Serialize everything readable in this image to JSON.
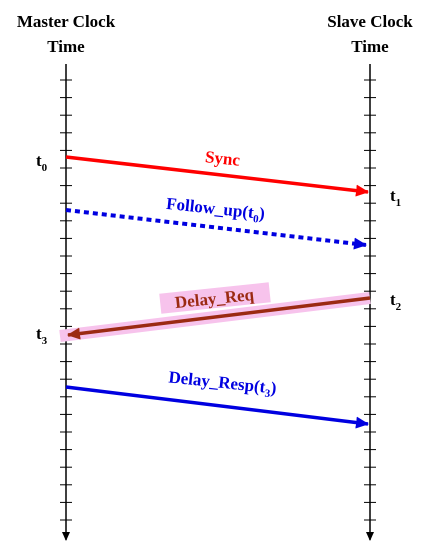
{
  "master": {
    "label": [
      "Master Clock",
      "Time"
    ]
  },
  "slave": {
    "label": [
      "Slave Clock",
      "Time"
    ]
  },
  "timestamps": [
    {
      "name": "t",
      "sub": "0"
    },
    {
      "name": "t",
      "sub": "1"
    },
    {
      "name": "t",
      "sub": "2"
    },
    {
      "name": "t",
      "sub": "3"
    }
  ],
  "messages": [
    {
      "text": "Sync"
    },
    {
      "text": "Follow_up(",
      "name": "t",
      "sub": "0",
      "close": ")"
    },
    {
      "text": "Delay_Req"
    },
    {
      "text": "Delay_Resp(",
      "name": "t",
      "sub": "3",
      "close": ")"
    }
  ]
}
